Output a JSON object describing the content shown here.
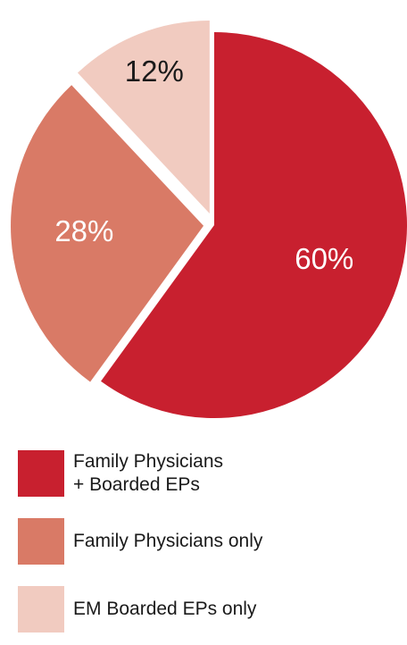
{
  "chart_data": {
    "type": "pie",
    "slices": [
      {
        "name": "Family Physicians\n+ Boarded EPs",
        "value": 60,
        "label": "60%",
        "color": "#c8202f",
        "label_color": "#ffffff"
      },
      {
        "name": "Family Physicians only",
        "value": 28,
        "label": "28%",
        "color": "#d97a66",
        "label_color": "#ffffff"
      },
      {
        "name": "EM Boarded EPs only",
        "value": 12,
        "label": "12%",
        "color": "#f1cbc0",
        "label_color": "#1a1a1a"
      }
    ],
    "legend_position": "bottom"
  }
}
